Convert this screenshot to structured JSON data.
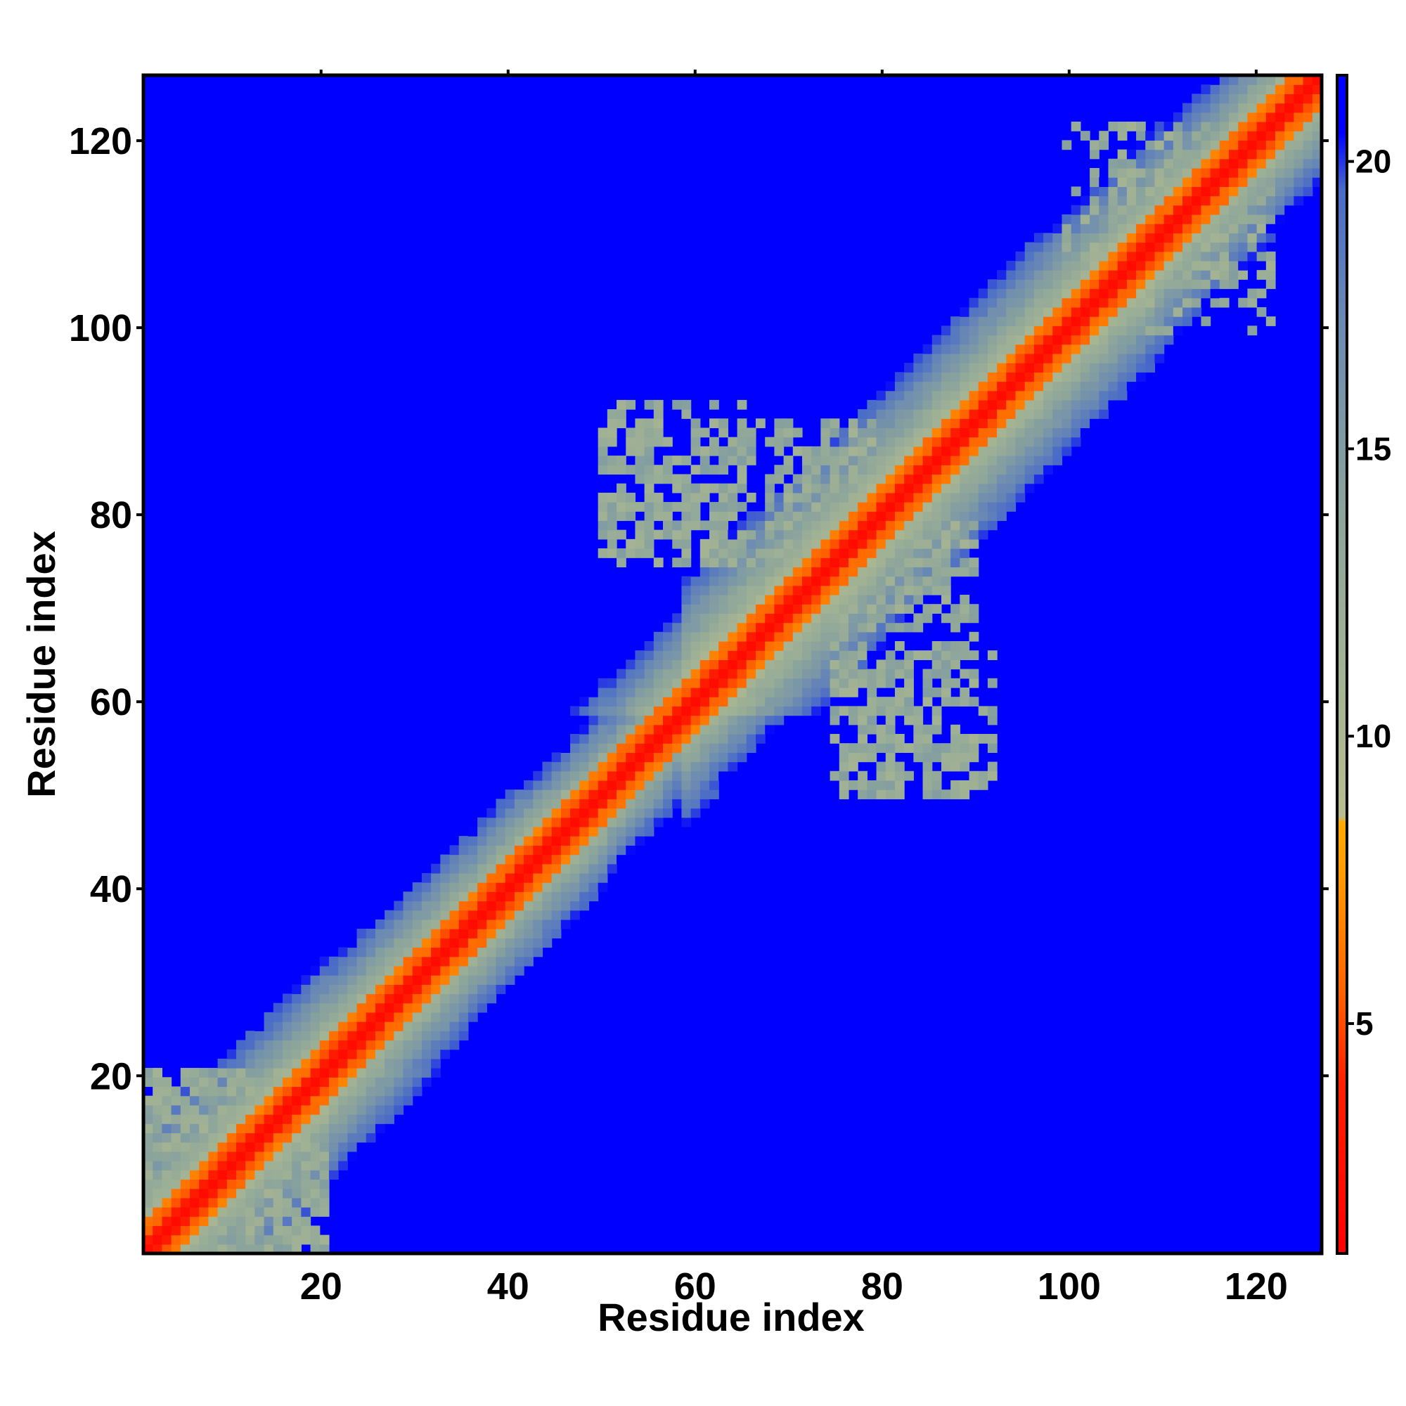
{
  "chart_data": {
    "type": "heatmap",
    "title": "",
    "xlabel": "Residue index",
    "ylabel": "Residue index",
    "n_residues": 127,
    "xlim": [
      1,
      127
    ],
    "ylim": [
      1,
      127
    ],
    "x_ticks": [
      "20",
      "40",
      "60",
      "80",
      "100",
      "120"
    ],
    "y_ticks": [
      "20",
      "40",
      "60",
      "80",
      "100",
      "120"
    ],
    "x_tick_values": [
      20,
      40,
      60,
      80,
      100,
      120
    ],
    "y_tick_values": [
      20,
      40,
      60,
      80,
      100,
      120
    ],
    "colorbar": {
      "range": [
        1,
        21.5
      ],
      "ticks": [
        "5",
        "10",
        "15",
        "20"
      ],
      "tick_values": [
        5,
        10,
        15,
        20
      ],
      "stops": [
        {
          "value": 1,
          "color": "#ff0000"
        },
        {
          "value": 4,
          "color": "#ff2000"
        },
        {
          "value": 5.5,
          "color": "#ff6000"
        },
        {
          "value": 7.5,
          "color": "#ff9900"
        },
        {
          "value": 8.5,
          "color": "#ffaa00"
        },
        {
          "value": 8.6,
          "color": "#b8bc90"
        },
        {
          "value": 11,
          "color": "#a3b393"
        },
        {
          "value": 14,
          "color": "#8aa39c"
        },
        {
          "value": 17,
          "color": "#6d8cb1"
        },
        {
          "value": 19.5,
          "color": "#4a6bc8"
        },
        {
          "value": 20.5,
          "color": "#0000ff"
        },
        {
          "value": 21.5,
          "color": "#0000ff"
        }
      ]
    },
    "matrix_description": "symmetric residue-residue distance map: values near diagonal are low (red/orange), increase with sequence separation up to a cutoff, off-band cells saturated at max (blue)",
    "band": {
      "diagonal_value": 2,
      "cutoff": 20.5,
      "half_width_by_residue": [
        {
          "from": 1,
          "to": 20,
          "half_width": 13
        },
        {
          "from": 20,
          "to": 35,
          "half_width": 11
        },
        {
          "from": 35,
          "to": 50,
          "half_width": 10
        },
        {
          "from": 50,
          "to": 58,
          "half_width": 8
        },
        {
          "from": 58,
          "to": 80,
          "half_width": 14
        },
        {
          "from": 80,
          "to": 110,
          "half_width": 13
        },
        {
          "from": 110,
          "to": 127,
          "half_width": 11
        }
      ]
    },
    "off_band_patches": [
      {
        "x": [
          1,
          20
        ],
        "y": [
          1,
          20
        ],
        "value": 13,
        "density": 0.55
      },
      {
        "x": [
          50,
          80
        ],
        "y": [
          75,
          90
        ],
        "value": 13,
        "density": 0.45
      },
      {
        "x": [
          75,
          92
        ],
        "y": [
          50,
          65
        ],
        "value": 13,
        "density": 0.4
      },
      {
        "x": [
          105,
          122
        ],
        "y": [
          100,
          118
        ],
        "value": 13,
        "density": 0.35
      }
    ]
  }
}
